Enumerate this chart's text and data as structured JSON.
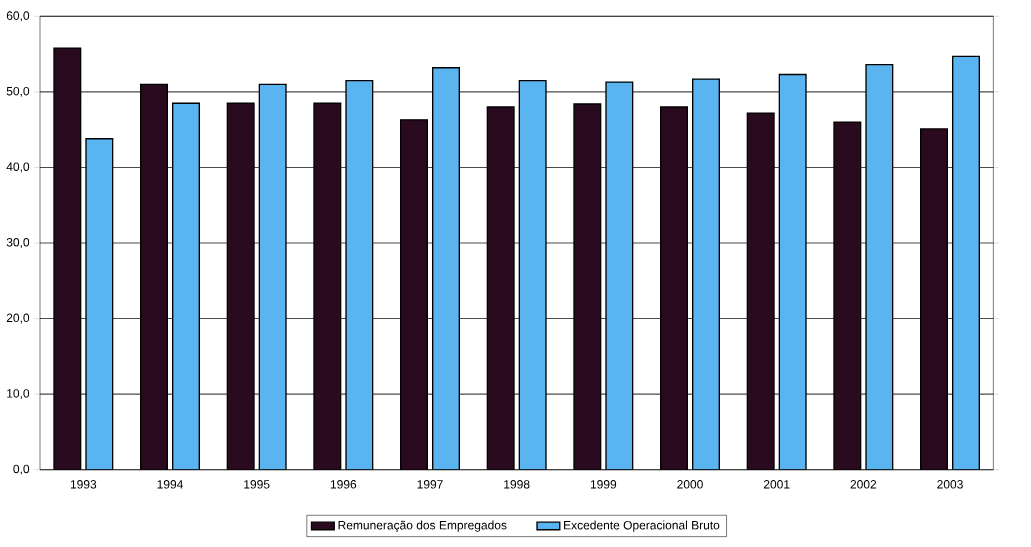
{
  "chart_data": {
    "type": "bar",
    "categories": [
      "1993",
      "1994",
      "1995",
      "1996",
      "1997",
      "1998",
      "1999",
      "2000",
      "2001",
      "2002",
      "2003"
    ],
    "series": [
      {
        "name": "Remuneração dos Empregados",
        "color": "#2a0a1e",
        "values": [
          55.8,
          51.0,
          48.5,
          48.5,
          46.3,
          48.0,
          48.4,
          48.0,
          47.2,
          46.0,
          45.1
        ]
      },
      {
        "name": "Excedente Operacional Bruto",
        "color": "#5ab4f0",
        "values": [
          43.8,
          48.5,
          51.0,
          51.5,
          53.2,
          51.5,
          51.3,
          51.7,
          52.3,
          53.6,
          54.7
        ]
      }
    ],
    "ylim": [
      0,
      60
    ],
    "yticks": [
      {
        "value": 0,
        "label": "0,0"
      },
      {
        "value": 10,
        "label": "10,0"
      },
      {
        "value": 20,
        "label": "20,0"
      },
      {
        "value": 30,
        "label": "30,0"
      },
      {
        "value": 40,
        "label": "40,0"
      },
      {
        "value": 50,
        "label": "50,0"
      },
      {
        "value": 60,
        "label": "60,0"
      }
    ],
    "grid": "y",
    "legend": "bottom"
  }
}
